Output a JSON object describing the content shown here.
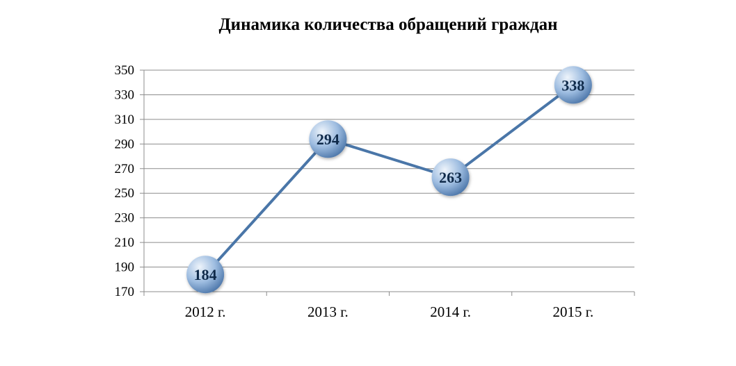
{
  "chart_data": {
    "type": "line",
    "title": "Динамика количества обращений граждан",
    "xlabel": "",
    "ylabel": "",
    "categories": [
      "2012 г.",
      "2013 г.",
      "2014 г.",
      "2015 г."
    ],
    "series": [
      {
        "values": [
          184,
          294,
          263,
          338
        ],
        "data_labels": [
          "184",
          "294",
          "263",
          "338"
        ]
      }
    ],
    "ylim": [
      170,
      350
    ],
    "yticks": [
      "350",
      "330",
      "310",
      "290",
      "270",
      "250",
      "230",
      "210",
      "190",
      "170"
    ],
    "grid": true,
    "legend": "none",
    "colors": {
      "line": "#4a76a8",
      "marker_light": "#eef4fb",
      "marker_mid": "#9dbce0",
      "marker_dark": "#4d77aa",
      "grid": "#8c8c8c"
    }
  }
}
